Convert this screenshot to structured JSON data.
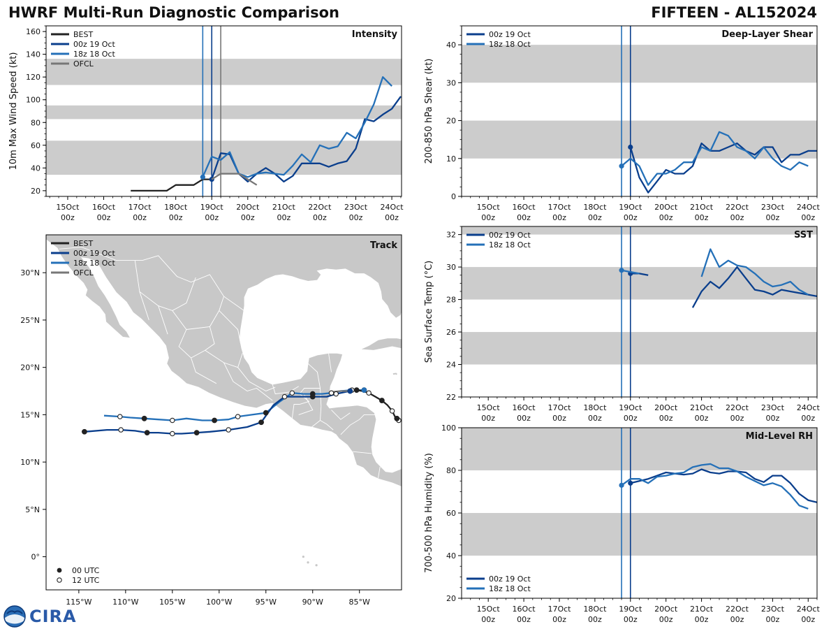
{
  "header": {
    "title": "HWRF Multi-Run Diagnostic Comparison",
    "storm": "FIFTEEN - AL152024"
  },
  "logo": {
    "text": "CIRA",
    "seal_text": "NOAA"
  },
  "colors": {
    "best": "#222222",
    "run_00z": "#0a3e8c",
    "run_18z": "#2470b8",
    "ofcl": "#777777",
    "band": "#cccccc",
    "land": "#c8c8c8",
    "vline_00z": "#0a3e8c",
    "vline_18z": "#2470b8",
    "vline_ofcl": "#777777"
  },
  "time_axis": {
    "tick_labels": [
      [
        "15Oct",
        "00z"
      ],
      [
        "16Oct",
        "00z"
      ],
      [
        "17Oct",
        "00z"
      ],
      [
        "18Oct",
        "00z"
      ],
      [
        "19Oct",
        "00z"
      ],
      [
        "20Oct",
        "00z"
      ],
      [
        "21Oct",
        "00z"
      ],
      [
        "22Oct",
        "00z"
      ],
      [
        "23Oct",
        "00z"
      ],
      [
        "24Oct",
        "00z"
      ]
    ]
  },
  "chart_data": [
    {
      "id": "intensity",
      "type": "line",
      "title": "Intensity",
      "ylabel": "10m Max Wind Speed (kt)",
      "xlim": [
        -0.6,
        9.27
      ],
      "ylim": [
        15,
        165
      ],
      "yticks": [
        20,
        40,
        60,
        80,
        100,
        120,
        140,
        160
      ],
      "bands": [
        [
          34,
          64
        ],
        [
          83,
          95
        ],
        [
          113,
          136
        ]
      ],
      "vlines": [
        {
          "x": 3.75,
          "series": "run_18z"
        },
        {
          "x": 4.0,
          "series": "run_00z"
        },
        {
          "x": 4.25,
          "series": "ofcl"
        }
      ],
      "legend": [
        "BEST",
        "00z 19 Oct",
        "18z 18 Oct",
        "OFCL"
      ],
      "series": [
        {
          "name": "BEST",
          "key": "best",
          "x": [
            1.75,
            2.0,
            2.25,
            2.5,
            2.75,
            3.0,
            3.25,
            3.5,
            3.75,
            4.0
          ],
          "y": [
            20,
            20,
            20,
            20,
            20,
            25,
            25,
            25,
            30,
            30
          ]
        },
        {
          "name": "00z 19 Oct",
          "key": "run_00z",
          "x": [
            4.0,
            4.25,
            4.5,
            4.75,
            5.0,
            5.25,
            5.5,
            5.75,
            6.0,
            6.25,
            6.5,
            6.75,
            7.0,
            7.25,
            7.5,
            7.75,
            8.0,
            8.25,
            8.5,
            8.75,
            9.0,
            9.25
          ],
          "y": [
            30,
            53,
            52,
            35,
            28,
            35,
            40,
            35,
            28,
            33,
            44,
            44,
            44,
            41,
            44,
            46,
            57,
            83,
            81,
            87,
            92,
            103
          ]
        },
        {
          "name": "18z 18 Oct",
          "key": "run_18z",
          "x": [
            3.75,
            4.0,
            4.25,
            4.5,
            4.75,
            5.0,
            5.25,
            5.5,
            5.75,
            6.0,
            6.25,
            6.5,
            6.75,
            7.0,
            7.25,
            7.5,
            7.75,
            8.0,
            8.25,
            8.5,
            8.75,
            9.0
          ],
          "y": [
            32,
            50,
            47,
            54,
            35,
            32,
            35,
            36,
            35,
            34,
            42,
            52,
            45,
            60,
            57,
            59,
            71,
            66,
            80,
            96,
            120,
            112
          ]
        },
        {
          "name": "OFCL",
          "key": "ofcl",
          "x": [
            4.0,
            4.25,
            4.5,
            4.75,
            5.0,
            5.25
          ],
          "y": [
            30,
            35,
            35,
            35,
            30,
            25
          ]
        }
      ]
    },
    {
      "id": "shear",
      "type": "line",
      "title": "Deep-Layer Shear",
      "ylabel": "200-850 hPa Shear (kt)",
      "xlim": [
        -0.75,
        9.25
      ],
      "ylim": [
        0,
        45
      ],
      "yticks": [
        0,
        10,
        20,
        30,
        40
      ],
      "bands": [
        [
          10,
          20
        ],
        [
          30,
          40
        ]
      ],
      "vlines": [
        {
          "x": 3.75,
          "series": "run_18z"
        },
        {
          "x": 4.0,
          "series": "run_00z"
        }
      ],
      "legend": [
        "00z 19 Oct",
        "18z 18 Oct"
      ],
      "series": [
        {
          "name": "00z 19 Oct",
          "key": "run_00z",
          "x": [
            4.0,
            4.25,
            4.5,
            4.75,
            5.0,
            5.25,
            5.5,
            5.75,
            6.0,
            6.25,
            6.5,
            6.75,
            7.0,
            7.25,
            7.5,
            7.75,
            8.0,
            8.25,
            8.5,
            8.75,
            9.0,
            9.25
          ],
          "y": [
            13,
            5,
            1,
            4,
            7,
            6,
            6,
            8,
            14,
            12,
            12,
            13,
            14,
            12,
            11,
            13,
            13,
            9,
            11,
            11,
            12,
            12
          ]
        },
        {
          "name": "18z 18 Oct",
          "key": "run_18z",
          "x": [
            3.75,
            4.0,
            4.25,
            4.5,
            4.75,
            5.0,
            5.25,
            5.5,
            5.75,
            6.0,
            6.25,
            6.5,
            6.75,
            7.0,
            7.25,
            7.5,
            7.75,
            8.0,
            8.25,
            8.5,
            8.75,
            9.0
          ],
          "y": [
            8,
            10,
            8,
            3,
            6,
            6,
            7,
            9,
            9,
            13,
            12,
            17,
            16,
            13,
            12,
            10,
            13,
            10,
            8,
            7,
            9,
            8
          ]
        }
      ]
    },
    {
      "id": "sst",
      "type": "line",
      "title": "SST",
      "ylabel": "Sea Surface Temp (°C)",
      "xlim": [
        -0.75,
        9.25
      ],
      "ylim": [
        22,
        32.5
      ],
      "yticks": [
        22,
        24,
        26,
        28,
        30,
        32
      ],
      "bands": [
        [
          24,
          26
        ],
        [
          28,
          30
        ],
        [
          32,
          32.5
        ]
      ],
      "vlines": [
        {
          "x": 3.75,
          "series": "run_18z"
        },
        {
          "x": 4.0,
          "series": "run_00z"
        }
      ],
      "legend": [
        "00z 19 Oct",
        "18z 18 Oct"
      ],
      "series": [
        {
          "name": "00z 19 Oct seg1",
          "key": "run_00z",
          "x": [
            4.0,
            4.25,
            4.5
          ],
          "y": [
            29.6,
            29.6,
            29.5
          ]
        },
        {
          "name": "00z 19 Oct seg2",
          "key": "run_00z",
          "x": [
            5.75,
            6.0,
            6.25,
            6.5,
            6.75,
            7.0,
            7.25,
            7.5,
            7.75,
            8.0,
            8.25,
            8.5,
            8.75,
            9.0,
            9.25
          ],
          "y": [
            27.5,
            28.5,
            29.1,
            28.7,
            29.3,
            30.0,
            29.3,
            28.6,
            28.5,
            28.3,
            28.6,
            28.5,
            28.4,
            28.3,
            28.2
          ]
        },
        {
          "name": "18z 18 Oct seg1",
          "key": "run_18z",
          "x": [
            3.75,
            4.0,
            4.25
          ],
          "y": [
            29.8,
            29.7,
            29.6
          ]
        },
        {
          "name": "18z 18 Oct seg2",
          "key": "run_18z",
          "x": [
            6.0,
            6.25,
            6.5,
            6.75,
            7.0,
            7.25,
            7.5,
            7.75,
            8.0,
            8.25,
            8.5,
            8.75,
            9.0
          ],
          "y": [
            29.4,
            31.1,
            30.0,
            30.4,
            30.1,
            30.0,
            29.6,
            29.1,
            28.8,
            28.9,
            29.1,
            28.6,
            28.3
          ]
        }
      ]
    },
    {
      "id": "rh",
      "type": "line",
      "title": "Mid-Level RH",
      "ylabel": "700-500 hPa Humidity (%)",
      "xlim": [
        -0.75,
        9.25
      ],
      "ylim": [
        20,
        100
      ],
      "yticks": [
        20,
        40,
        60,
        80,
        100
      ],
      "bands": [
        [
          40,
          60
        ],
        [
          80,
          100
        ]
      ],
      "vlines": [
        {
          "x": 3.75,
          "series": "run_18z"
        },
        {
          "x": 4.0,
          "series": "run_00z"
        }
      ],
      "legend": [
        "00z 19 Oct",
        "18z 18 Oct"
      ],
      "series": [
        {
          "name": "00z 19 Oct",
          "key": "run_00z",
          "x": [
            4.0,
            4.25,
            4.5,
            4.75,
            5.0,
            5.25,
            5.5,
            5.75,
            6.0,
            6.25,
            6.5,
            6.75,
            7.0,
            7.25,
            7.5,
            7.75,
            8.0,
            8.25,
            8.5,
            8.75,
            9.0,
            9.25
          ],
          "y": [
            74,
            75,
            76,
            77.5,
            79,
            78.5,
            78,
            78.5,
            80.5,
            79,
            78.5,
            79.5,
            79.5,
            79,
            76,
            74.5,
            77.5,
            77.5,
            74,
            69,
            66,
            65
          ]
        },
        {
          "name": "18z 18 Oct",
          "key": "run_18z",
          "x": [
            3.75,
            4.0,
            4.25,
            4.5,
            4.75,
            5.0,
            5.25,
            5.5,
            5.75,
            6.0,
            6.25,
            6.5,
            6.75,
            7.0,
            7.25,
            7.5,
            7.75,
            8.0,
            8.25,
            8.5,
            8.75,
            9.0
          ],
          "y": [
            73,
            76,
            76,
            74,
            77,
            77.5,
            78.5,
            79,
            81.5,
            82.5,
            83,
            81,
            81,
            79.5,
            77,
            75,
            73,
            74,
            72.5,
            68.5,
            63.5,
            62
          ]
        }
      ]
    },
    {
      "id": "track",
      "type": "scatter",
      "title": "Track",
      "xlim": [
        -118.5,
        -80.5
      ],
      "ylim": [
        -3.5,
        34
      ],
      "xticks": [
        -115,
        -110,
        -105,
        -100,
        -95,
        -90,
        -85
      ],
      "xtick_labels": [
        "115°W",
        "110°W",
        "105°W",
        "100°W",
        "95°W",
        "90°W",
        "85°W"
      ],
      "yticks": [
        0,
        5,
        10,
        15,
        20,
        25,
        30
      ],
      "ytick_labels": [
        "0°",
        "5°N",
        "10°N",
        "15°N",
        "20°N",
        "25°N",
        "30°N"
      ],
      "legend": [
        "BEST",
        "00z 19 Oct",
        "18z 18 Oct",
        "OFCL"
      ],
      "marker_legend": [
        "00 UTC",
        "12 UTC"
      ],
      "series": [
        {
          "name": "BEST",
          "key": "best",
          "lon": [
            -80.8,
            -81.0,
            -81.2,
            -81.5,
            -82.0,
            -82.6,
            -83.3,
            -84.0,
            -84.7,
            -85.3,
            -85.7,
            -86.0
          ],
          "lat": [
            14.4,
            14.6,
            14.8,
            15.4,
            16.0,
            16.5,
            16.9,
            17.3,
            17.5,
            17.6,
            17.6,
            17.5
          ],
          "markers": [
            "o",
            "f",
            "",
            "o",
            "",
            "f",
            "",
            "o",
            "",
            "f",
            "",
            "o"
          ]
        },
        {
          "name": "00z 19 Oct",
          "key": "run_00z",
          "lon": [
            -86.0,
            -87.5,
            -88.5,
            -89.0,
            -90.0,
            -91.0,
            -92.0,
            -93.0,
            -94.2,
            -95.5,
            -97.0,
            -99.0,
            -101.0,
            -102.4,
            -104.0,
            -105.0,
            -106.5,
            -107.7,
            -109.0,
            -110.5,
            -112.0,
            -114.4
          ],
          "lat": [
            17.5,
            17.2,
            16.9,
            16.9,
            16.9,
            16.9,
            16.9,
            16.9,
            16.0,
            14.2,
            13.7,
            13.4,
            13.2,
            13.1,
            13.0,
            13.0,
            13.1,
            13.1,
            13.3,
            13.4,
            13.4,
            13.2
          ],
          "markers": [
            "f",
            "o",
            "",
            "",
            "f",
            "",
            "",
            "o",
            "",
            "f",
            "",
            "o",
            "",
            "f",
            "",
            "o",
            "",
            "f",
            "",
            "o",
            "",
            "f"
          ]
        },
        {
          "name": "18z 18 Oct",
          "key": "run_18z",
          "lon": [
            -84.5,
            -85.8,
            -87.0,
            -88.0,
            -89.0,
            -90.0,
            -91.0,
            -92.2,
            -93.5,
            -95.0,
            -96.5,
            -98.0,
            -99.0,
            -100.5,
            -101.8,
            -103.5,
            -105.0,
            -106.5,
            -108.0,
            -109.5,
            -110.6,
            -112.3
          ],
          "lat": [
            17.6,
            17.6,
            17.5,
            17.3,
            17.2,
            17.2,
            17.2,
            17.3,
            16.4,
            15.2,
            15.0,
            14.8,
            14.5,
            14.4,
            14.4,
            14.6,
            14.4,
            14.5,
            14.6,
            14.7,
            14.8,
            14.9
          ],
          "markers": [
            "f",
            "o",
            "",
            "o",
            "",
            "f",
            "",
            "o",
            "",
            "f",
            "",
            "o",
            "",
            "f",
            "",
            "",
            "o",
            "",
            "f",
            "",
            "o",
            ""
          ]
        },
        {
          "name": "OFCL",
          "key": "ofcl",
          "lon": [
            -86.0,
            -87.0,
            -88.0
          ],
          "lat": [
            17.5,
            17.5,
            17.4
          ],
          "markers": [
            "",
            "",
            ""
          ]
        }
      ]
    }
  ]
}
